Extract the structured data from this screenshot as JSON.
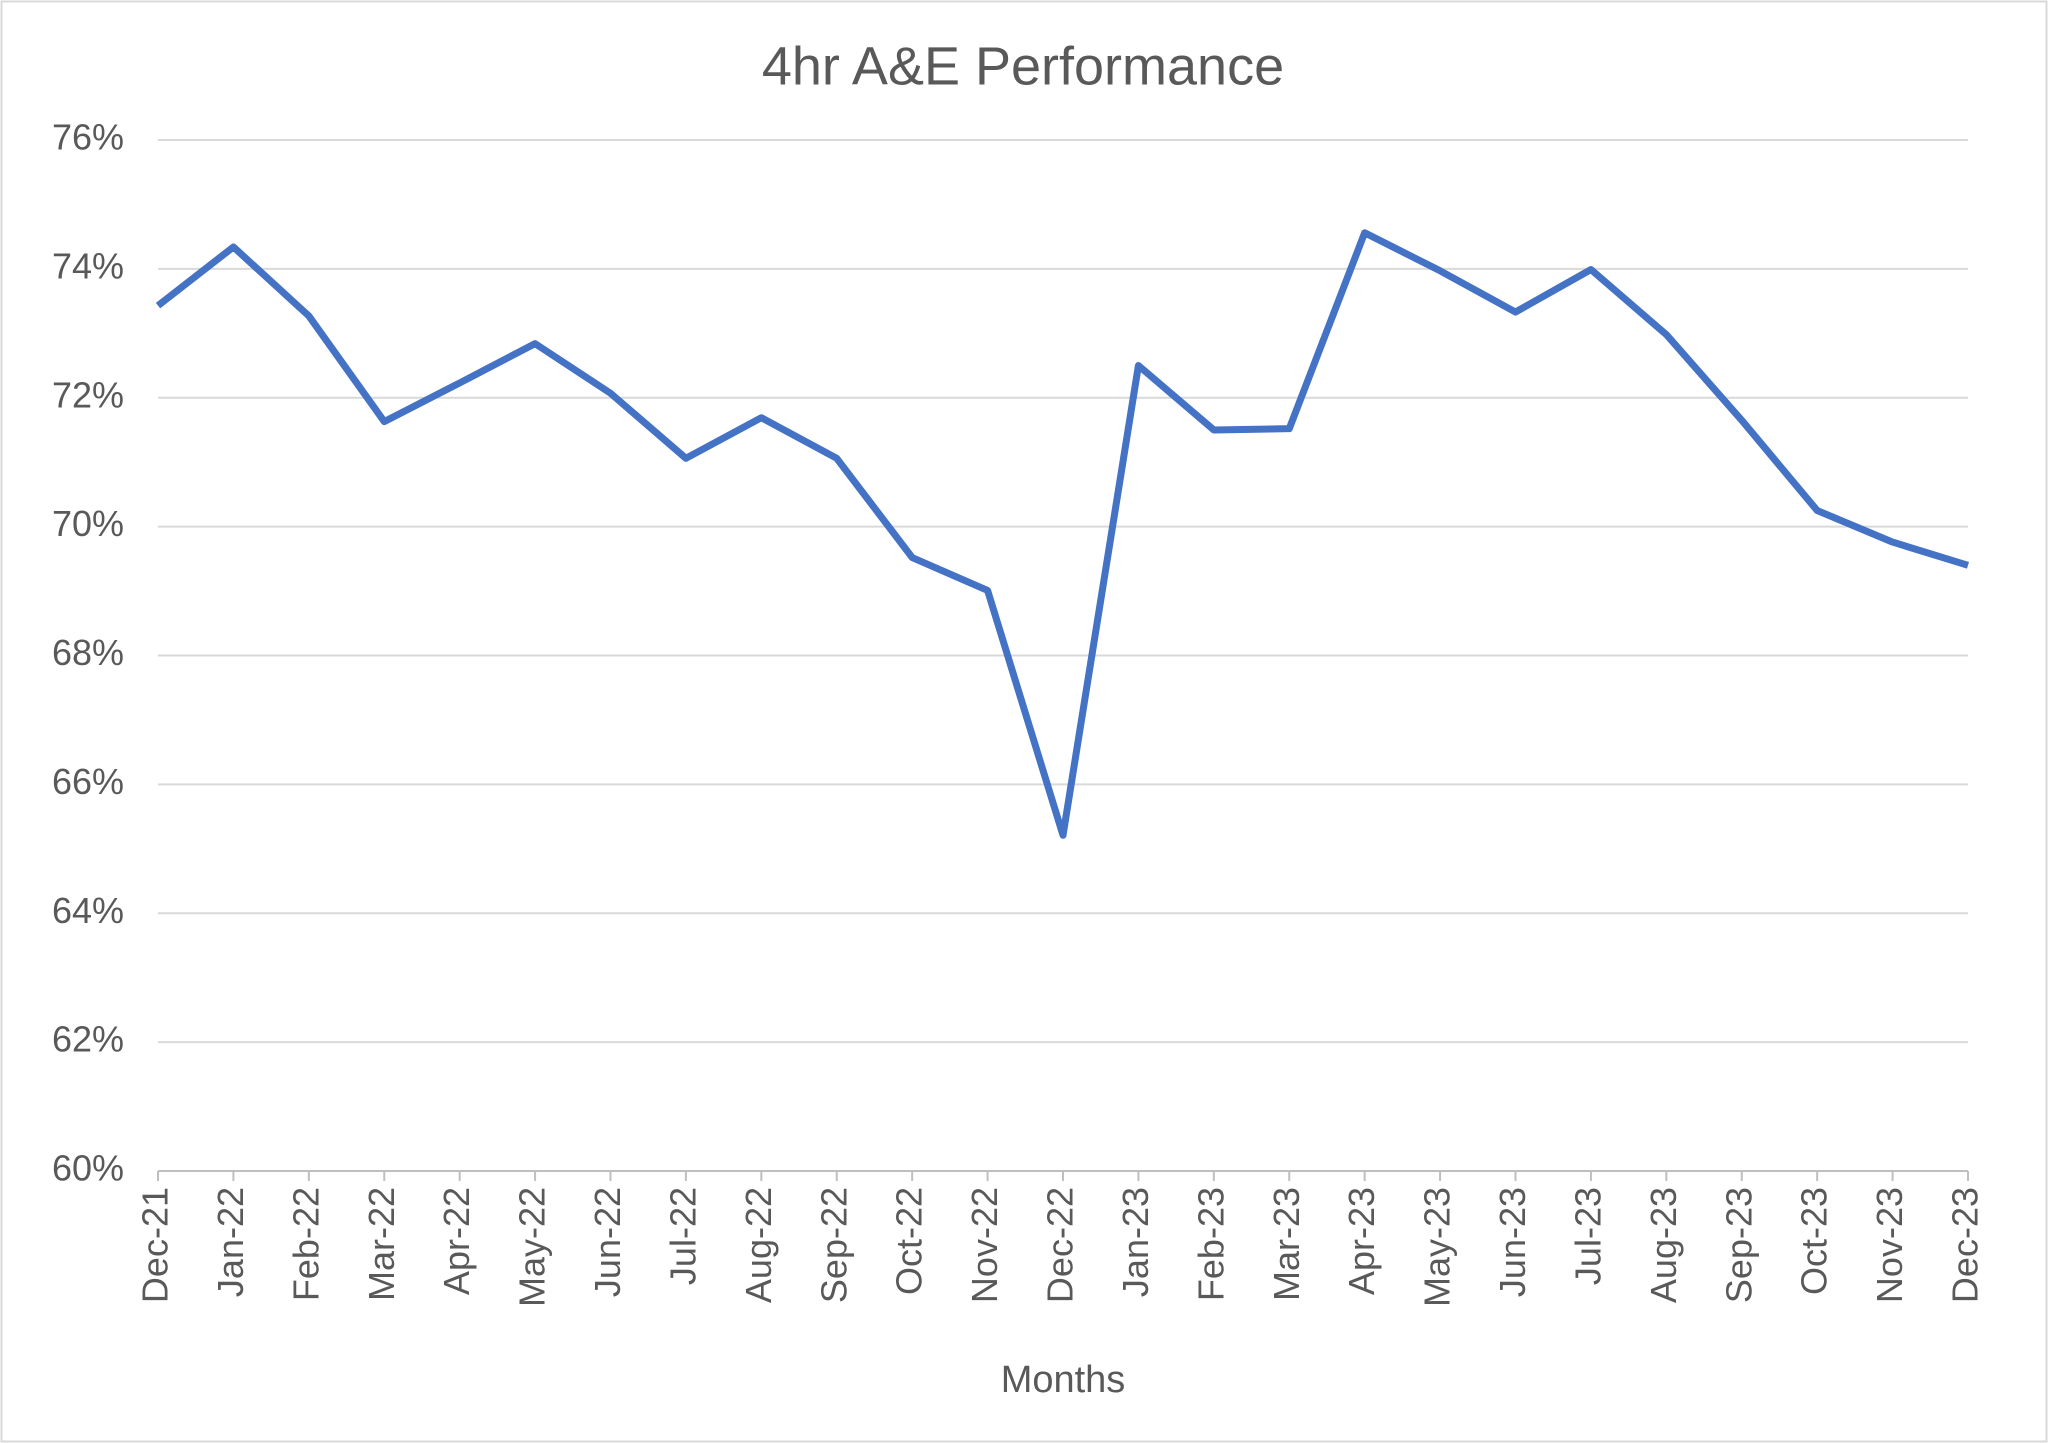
{
  "chart_data": {
    "type": "line",
    "title": "4hr A&E Performance",
    "x_label": "Months",
    "categories": [
      "Dec-21",
      "Jan-22",
      "Feb-22",
      "Mar-22",
      "Apr-22",
      "May-22",
      "Jun-22",
      "Jul-22",
      "Aug-22",
      "Sep-22",
      "Oct-22",
      "Nov-22",
      "Dec-22",
      "Jan-23",
      "Feb-23",
      "Mar-23",
      "Apr-23",
      "May-23",
      "Jun-23",
      "Jul-23",
      "Aug-23",
      "Sep-23",
      "Oct-23",
      "Nov-23",
      "Dec-23"
    ],
    "series": [
      {
        "color": "#4472c4",
        "values": [
          73.43,
          74.34,
          73.27,
          71.63,
          72.23,
          72.84,
          72.07,
          71.06,
          71.69,
          71.06,
          69.52,
          69.01,
          65.21,
          72.5,
          71.5,
          71.52,
          74.56,
          73.97,
          73.33,
          73.99,
          72.98,
          71.65,
          70.25,
          69.76,
          69.4
        ]
      }
    ],
    "ylim": [
      60,
      76
    ],
    "yticks": [
      {
        "value": 60,
        "label": "60%"
      },
      {
        "value": 62,
        "label": "62%"
      },
      {
        "value": 64,
        "label": "64%"
      },
      {
        "value": 66,
        "label": "66%"
      },
      {
        "value": 68,
        "label": "68%"
      },
      {
        "value": 70,
        "label": "70%"
      },
      {
        "value": 72,
        "label": "72%"
      },
      {
        "value": 74,
        "label": "74%"
      },
      {
        "value": 76,
        "label": "76%"
      }
    ],
    "grid": true
  }
}
